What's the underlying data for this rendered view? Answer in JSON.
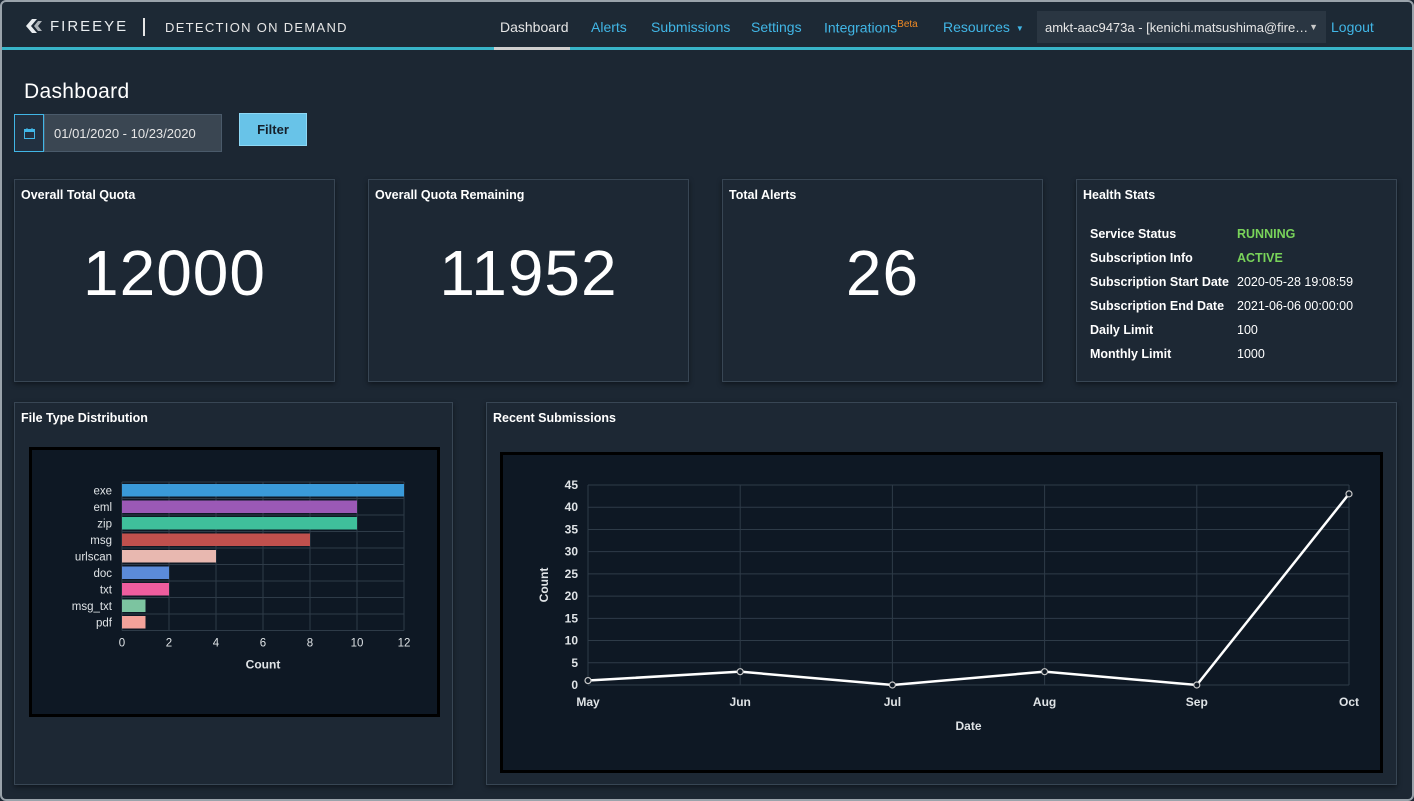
{
  "brand": {
    "name": "FIREEYE",
    "product": "DETECTION ON DEMAND"
  },
  "nav": {
    "items": [
      {
        "label": "Dashboard"
      },
      {
        "label": "Alerts"
      },
      {
        "label": "Submissions"
      },
      {
        "label": "Settings"
      },
      {
        "label": "Integrations"
      },
      {
        "label": "Resources"
      }
    ],
    "beta_label": "Beta",
    "account": "amkt-aac9473a - [kenichi.matsushima@fire…",
    "logout": "Logout"
  },
  "page": {
    "title": "Dashboard"
  },
  "filter": {
    "date_range": "01/01/2020 - 10/23/2020",
    "button_label": "Filter"
  },
  "stats": {
    "total_quota": {
      "title": "Overall Total Quota",
      "value": "12000"
    },
    "quota_remaining": {
      "title": "Overall Quota Remaining",
      "value": "11952"
    },
    "total_alerts": {
      "title": "Total Alerts",
      "value": "26"
    }
  },
  "health": {
    "title": "Health Stats",
    "rows": [
      {
        "label": "Service Status",
        "value": "RUNNING"
      },
      {
        "label": "Subscription Info",
        "value": "ACTIVE"
      },
      {
        "label": "Subscription Start Date",
        "value": "2020-05-28 19:08:59"
      },
      {
        "label": "Subscription End Date",
        "value": "2021-06-06 00:00:00"
      },
      {
        "label": "Daily Limit",
        "value": "100"
      },
      {
        "label": "Monthly Limit",
        "value": "1000"
      }
    ],
    "colors": {
      "status_ok": "#79d35a"
    }
  },
  "file_type_chart": {
    "title": "File Type Distribution",
    "chart_data": {
      "type": "bar",
      "orientation": "horizontal",
      "categories": [
        "exe",
        "eml",
        "zip",
        "msg",
        "urlscan",
        "doc",
        "txt",
        "msg_txt",
        "pdf"
      ],
      "values": [
        12,
        10,
        10,
        8,
        4,
        2,
        2,
        1,
        1
      ],
      "colors": [
        "#3a9ad9",
        "#9b59b6",
        "#3fbf9b",
        "#c0504d",
        "#e8b8b0",
        "#5b8bd9",
        "#ef5d9e",
        "#7cc4a0",
        "#f4a29a"
      ],
      "xlabel": "Count",
      "ylabel": "",
      "xlim": [
        0,
        12
      ],
      "xticks": [
        0,
        2,
        4,
        6,
        8,
        10,
        12
      ],
      "grid": true
    }
  },
  "submissions_chart": {
    "title": "Recent Submissions",
    "chart_data": {
      "type": "line",
      "x": [
        "May",
        "Jun",
        "Jul",
        "Aug",
        "Sep",
        "Oct"
      ],
      "values": [
        1,
        3,
        0,
        3,
        0,
        43
      ],
      "xlabel": "Date",
      "ylabel": "Count",
      "ylim": [
        0,
        45
      ],
      "yticks": [
        0,
        5,
        10,
        15,
        20,
        25,
        30,
        35,
        40,
        45
      ],
      "grid": true,
      "line_color": "#ffffff"
    }
  }
}
